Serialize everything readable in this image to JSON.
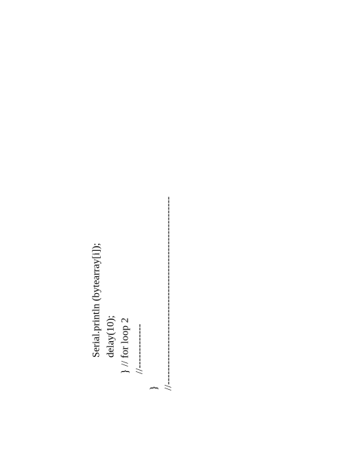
{
  "code": {
    "line1": "Serial.println (bytearray[i]);",
    "line2": "delay(10);",
    "line3": "} // for loop 2",
    "line4": "//-------------",
    "line5": "}",
    "line6": "//-------------------------------------------------------"
  },
  "style": {
    "background_color": "#ffffff",
    "text_color": "#000000",
    "font_size": 15,
    "font_family": "Georgia, serif",
    "rotation_deg": -90
  }
}
